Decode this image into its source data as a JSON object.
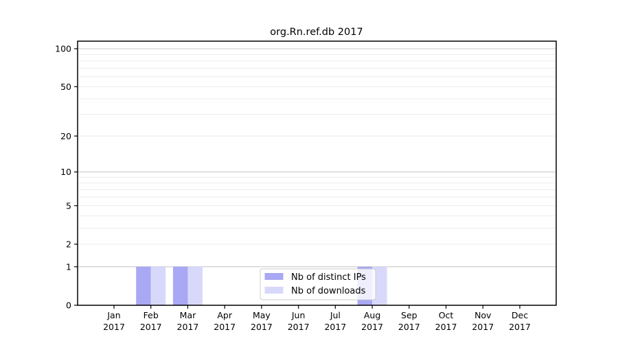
{
  "chart_data": {
    "type": "bar",
    "title": "org.Rn.ref.db 2017",
    "year": "2017",
    "months": [
      "Jan",
      "Feb",
      "Mar",
      "Apr",
      "May",
      "Jun",
      "Jul",
      "Aug",
      "Sep",
      "Oct",
      "Nov",
      "Dec"
    ],
    "series": [
      {
        "name": "Nb of distinct IPs",
        "color": "#a8a8f4",
        "values": [
          0,
          1,
          1,
          0,
          0,
          0,
          0,
          1,
          0,
          0,
          0,
          0
        ]
      },
      {
        "name": "Nb of downloads",
        "color": "#d8d8fb",
        "values": [
          0,
          1,
          1,
          0,
          0,
          0,
          0,
          1,
          0,
          0,
          0,
          0
        ]
      }
    ],
    "yscale": "log1p",
    "ylim": [
      0,
      115
    ],
    "ytick_labels": [
      "100",
      "50",
      "20",
      "10",
      "5",
      "2",
      "1",
      "0"
    ],
    "ytick_values": [
      100,
      50,
      20,
      10,
      5,
      2,
      1,
      0
    ],
    "major_grid_values": [
      1,
      10,
      100
    ],
    "minor_grid_values": [
      2,
      3,
      4,
      5,
      6,
      7,
      8,
      9,
      20,
      30,
      40,
      50,
      60,
      70,
      80,
      90
    ],
    "grid": true,
    "legend_position": "bottom-center",
    "colors": {
      "frame": "#000000",
      "major_grid": "#c9c9c9",
      "minor_grid": "#ececec",
      "legend_border": "#cccccc",
      "legend_bg": "rgba(255,255,255,0.8)"
    }
  }
}
